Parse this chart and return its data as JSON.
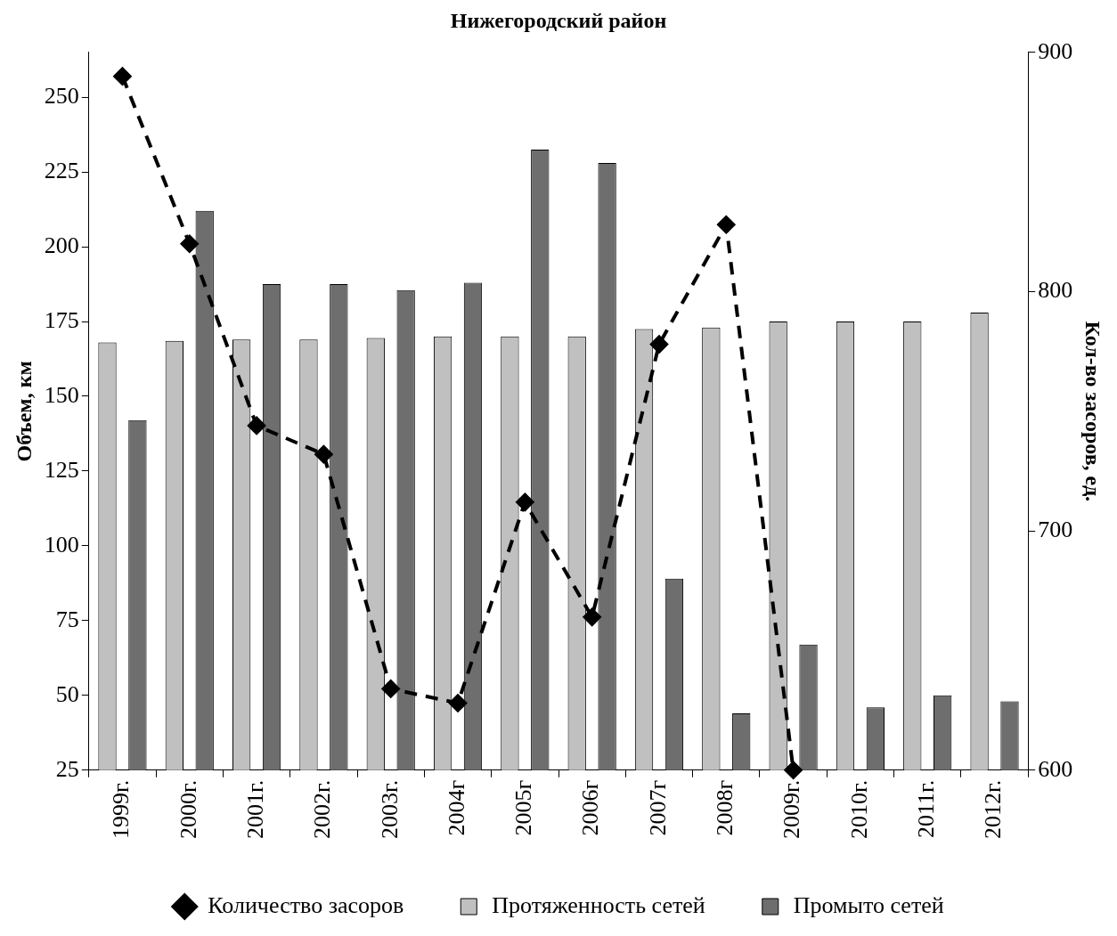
{
  "chart_data": {
    "type": "bar",
    "title": "Нижегородский район",
    "ylabel": "Объем, км",
    "y2label": "Кол-во засоров, ед.",
    "categories": [
      "1999г.",
      "2000г.",
      "2001г.",
      "2002г.",
      "2003г.",
      "2004г",
      "2005г",
      "2006г",
      "2007г",
      "2008г",
      "2009г.",
      "2010г.",
      "2011г.",
      "2012г."
    ],
    "series": [
      {
        "name": "Протяженность сетей",
        "color": "#c0c0c0",
        "values": [
          168,
          168.5,
          169,
          169,
          169.5,
          170,
          170,
          170,
          172.5,
          173,
          175,
          175,
          175,
          178
        ]
      },
      {
        "name": "Промыто сетей",
        "color": "#6e6e6e",
        "values": [
          142,
          212,
          187.5,
          187.5,
          185.5,
          188,
          232.5,
          228,
          89,
          44,
          67,
          46,
          50,
          48
        ]
      },
      {
        "name": "Количество засоров",
        "type": "line",
        "axis": "y2",
        "color": "#000000",
        "marker": "diamond",
        "line_style": "dashed",
        "values": [
          890,
          820,
          744,
          732,
          634,
          628,
          712,
          664,
          778,
          828,
          600,
          null,
          null,
          null
        ]
      }
    ],
    "ylim": [
      25,
      265
    ],
    "yticks": [
      25,
      50,
      75,
      100,
      125,
      150,
      175,
      200,
      225,
      250
    ],
    "y2lim": [
      600,
      900
    ],
    "y2ticks": [
      600,
      700,
      800,
      900
    ],
    "grid": false,
    "legend": "bottom"
  }
}
